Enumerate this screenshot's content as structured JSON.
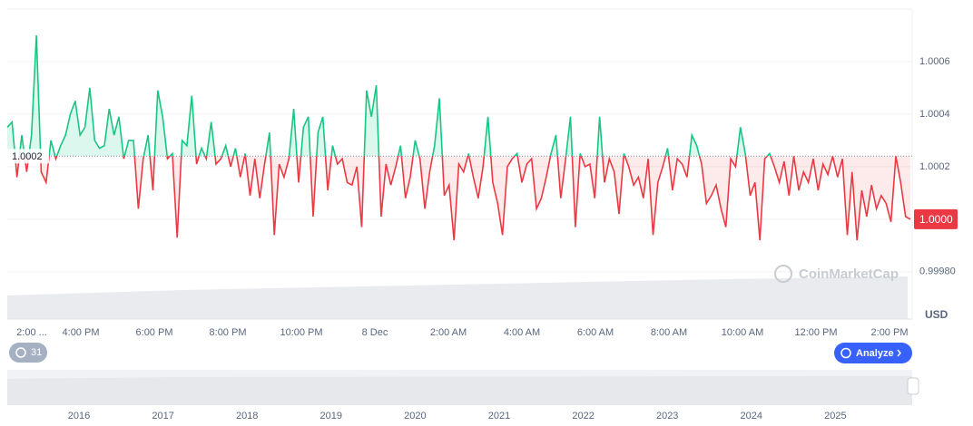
{
  "chart_data": {
    "type": "line",
    "values": [
      1.00035,
      1.00037,
      1.00016,
      1.00032,
      1.00018,
      1.00032,
      1.0007,
      1.00018,
      1.00014,
      1.0003,
      1.00023,
      1.00028,
      1.00032,
      1.0004,
      1.00045,
      1.00032,
      1.00035,
      1.0005,
      1.0003,
      1.00027,
      1.00028,
      1.00042,
      1.00032,
      1.00039,
      1.00023,
      1.0003,
      1.0003,
      1.00004,
      1.00023,
      1.00032,
      1.00011,
      1.00049,
      1.00039,
      1.00023,
      1.00025,
      0.99993,
      1.0003,
      1.00028,
      1.00047,
      1.00021,
      1.00027,
      1.00023,
      1.00037,
      1.00021,
      1.00023,
      1.00028,
      1.0002,
      1.00027,
      1.00016,
      1.00025,
      1.00009,
      1.00023,
      1.00008,
      1.00021,
      1.00033,
      0.99994,
      1.00021,
      1.00016,
      1.00023,
      1.00042,
      1.00014,
      1.00035,
      1.00039,
      1.00001,
      1.00033,
      1.00039,
      1.00011,
      1.00028,
      1.00021,
      1.00023,
      1.00014,
      1.00013,
      1.0002,
      0.99997,
      1.00049,
      1.00039,
      1.00051,
      1.00001,
      1.00021,
      1.00013,
      1.0002,
      1.00028,
      1.00008,
      1.00016,
      1.0003,
      1.00023,
      1.00004,
      1.00018,
      1.00028,
      1.00046,
      1.00009,
      1.00013,
      0.99992,
      1.00021,
      1.00018,
      1.00025,
      1.00016,
      1.00008,
      1.0002,
      1.00039,
      1.00014,
      1.00006,
      0.99994,
      1.0002,
      1.00023,
      1.00025,
      1.00014,
      1.00021,
      1.00023,
      1.00004,
      1.00008,
      1.00016,
      1.00025,
      1.00032,
      1.00008,
      1.00023,
      1.00039,
      0.99997,
      1.00025,
      1.0002,
      1.00021,
      1.00008,
      1.00039,
      1.00014,
      1.00023,
      1.00018,
      1.00002,
      1.00025,
      1.0002,
      1.00013,
      1.00016,
      1.00008,
      1.00023,
      0.99994,
      1.00014,
      1.0002,
      1.00027,
      1.00011,
      1.00023,
      1.00021,
      1.00016,
      1.00032,
      1.00028,
      1.00021,
      1.00006,
      1.00009,
      1.00013,
      1.00004,
      0.99997,
      1.00023,
      1.0002,
      1.00035,
      1.00025,
      1.00009,
      1.00014,
      0.99992,
      1.00023,
      1.00025,
      1.0002,
      1.00014,
      1.00022,
      1.00009,
      1.00024,
      1.00011,
      1.00018,
      1.00014,
      1.00023,
      1.00011,
      1.00021,
      1.00017,
      1.00024,
      1.00016,
      1.00023,
      0.99994,
      1.00018,
      0.99992,
      1.00011,
      1.00001,
      1.00013,
      1.00004,
      1.00009,
      1.00006,
      0.99999,
      1.00024,
      1.00014,
      1.00001,
      1.0
    ],
    "color_up": "#16c784",
    "color_down": "#ea3943",
    "baseline": {
      "value": 1.00024,
      "label": "1.0002"
    },
    "current_price_label": "1.0000",
    "ylim": [
      0.99962,
      1.0008
    ],
    "yticks": [
      {
        "value": 0.9998,
        "label": "0.99980"
      },
      {
        "value": 1.0,
        "label": "1.0000"
      },
      1.0002,
      1.0004,
      1.0006
    ],
    "grid": true,
    "x_labels": [
      "2:00 ...",
      "4:00 PM",
      "6:00 PM",
      "8:00 PM",
      "10:00 PM",
      "8 Dec",
      "2:00 AM",
      "4:00 AM",
      "6:00 AM",
      "8:00 AM",
      "10:00 AM",
      "12:00 PM",
      "2:00 PM"
    ],
    "currency": "USD",
    "watermark": "CoinMarketCap",
    "badge": "31",
    "button": "Analyze",
    "navigator_years": [
      "2016",
      "2017",
      "2018",
      "2019",
      "2020",
      "2021",
      "2022",
      "2023",
      "2024",
      "2025"
    ]
  }
}
